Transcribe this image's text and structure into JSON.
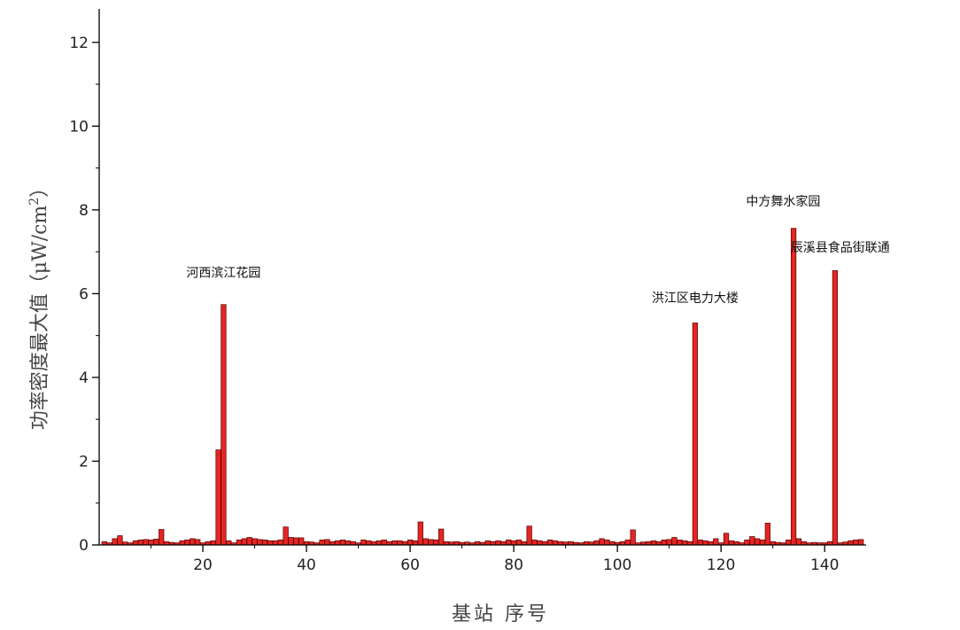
{
  "chart_data": {
    "type": "bar",
    "xlabel": "基站 序号",
    "ylabel_prefix": "功率密度最大值（μW/cm",
    "ylabel_sup": "2",
    "ylabel_suffix": "）",
    "xlim": [
      0,
      148
    ],
    "ylim": [
      0,
      12.8
    ],
    "xticks": [
      20,
      40,
      60,
      80,
      100,
      120,
      140
    ],
    "yticks": [
      0,
      2,
      4,
      6,
      8,
      10,
      12
    ],
    "bar_color": "#e32624",
    "bar_edge_color": "#550000",
    "x": [
      1,
      2,
      3,
      4,
      5,
      6,
      7,
      8,
      9,
      10,
      11,
      12,
      13,
      14,
      15,
      16,
      17,
      18,
      19,
      20,
      21,
      22,
      23,
      24,
      25,
      26,
      27,
      28,
      29,
      30,
      31,
      32,
      33,
      34,
      35,
      36,
      37,
      38,
      39,
      40,
      41,
      42,
      43,
      44,
      45,
      46,
      47,
      48,
      49,
      50,
      51,
      52,
      53,
      54,
      55,
      56,
      57,
      58,
      59,
      60,
      61,
      62,
      63,
      64,
      65,
      66,
      67,
      68,
      69,
      70,
      71,
      72,
      73,
      74,
      75,
      76,
      77,
      78,
      79,
      80,
      81,
      82,
      83,
      84,
      85,
      86,
      87,
      88,
      89,
      90,
      91,
      92,
      93,
      94,
      95,
      96,
      97,
      98,
      99,
      100,
      101,
      102,
      103,
      104,
      105,
      106,
      107,
      108,
      109,
      110,
      111,
      112,
      113,
      114,
      115,
      116,
      117,
      118,
      119,
      120,
      121,
      122,
      123,
      124,
      125,
      126,
      127,
      128,
      129,
      130,
      131,
      132,
      133,
      134,
      135,
      136,
      137,
      138,
      139,
      140,
      141,
      142,
      143,
      144,
      145,
      146,
      147
    ],
    "values": [
      0.08,
      0.05,
      0.15,
      0.22,
      0.07,
      0.05,
      0.1,
      0.12,
      0.13,
      0.12,
      0.14,
      0.37,
      0.08,
      0.06,
      0.05,
      0.1,
      0.12,
      0.15,
      0.13,
      0.05,
      0.08,
      0.1,
      2.27,
      5.74,
      0.1,
      0.05,
      0.12,
      0.15,
      0.18,
      0.15,
      0.13,
      0.12,
      0.1,
      0.1,
      0.12,
      0.43,
      0.18,
      0.17,
      0.17,
      0.08,
      0.07,
      0.05,
      0.12,
      0.13,
      0.08,
      0.1,
      0.12,
      0.1,
      0.08,
      0.05,
      0.12,
      0.1,
      0.08,
      0.1,
      0.12,
      0.08,
      0.1,
      0.1,
      0.08,
      0.12,
      0.1,
      0.55,
      0.15,
      0.13,
      0.12,
      0.38,
      0.08,
      0.07,
      0.08,
      0.06,
      0.07,
      0.05,
      0.08,
      0.06,
      0.1,
      0.08,
      0.1,
      0.08,
      0.12,
      0.1,
      0.12,
      0.08,
      0.45,
      0.12,
      0.1,
      0.08,
      0.12,
      0.1,
      0.08,
      0.07,
      0.08,
      0.06,
      0.05,
      0.08,
      0.07,
      0.1,
      0.15,
      0.12,
      0.08,
      0.06,
      0.08,
      0.12,
      0.36,
      0.05,
      0.07,
      0.08,
      0.1,
      0.08,
      0.12,
      0.13,
      0.18,
      0.12,
      0.1,
      0.08,
      5.3,
      0.12,
      0.1,
      0.08,
      0.15,
      0.05,
      0.28,
      0.1,
      0.08,
      0.05,
      0.12,
      0.2,
      0.15,
      0.12,
      0.52,
      0.08,
      0.06,
      0.05,
      0.12,
      7.56,
      0.15,
      0.08,
      0.05,
      0.06,
      0.05,
      0.05,
      0.08,
      6.55,
      0.05,
      0.07,
      0.1,
      0.12,
      0.13
    ],
    "annotations": [
      {
        "text": "河西滨江花园",
        "x": 24,
        "y": 6.4
      },
      {
        "text": "洪江区电力大楼",
        "x": 115,
        "y": 5.8
      },
      {
        "text": "中方舞水家园",
        "x": 132,
        "y": 8.1
      },
      {
        "text": "辰溪县食品街联通",
        "x": 143,
        "y": 7.0
      }
    ]
  }
}
